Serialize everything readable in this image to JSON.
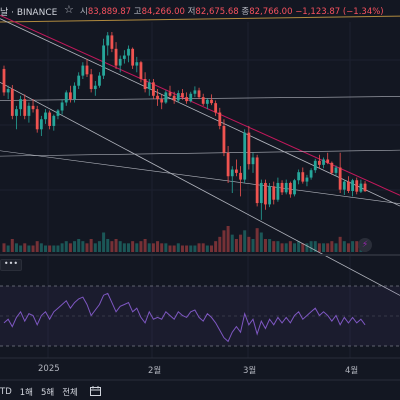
{
  "header": {
    "symbol_fragment": "날 · BINANCE",
    "open_label": "시",
    "open_value": "83,889.87",
    "high_label": "고",
    "high_value": "84,266.00",
    "low_label": "저",
    "low_value": "82,675.68",
    "close_label": "종",
    "close_value": "82,766.00",
    "change_value": "−1,123.87 (−1.34%)"
  },
  "indicator_toggle_label": "•••",
  "x_axis_labels": [
    "2025",
    "2월",
    "3월",
    "4월"
  ],
  "bottom_bar": {
    "items": [
      "TD",
      "1해",
      "5해",
      "전체"
    ]
  },
  "colors": {
    "background": "#131722",
    "up": "#26a69a",
    "down": "#ef5350",
    "rsi_line": "#7e57c2",
    "upper_trendline": "#c2185b",
    "resistance_line": "#b08a3e"
  },
  "icons": {
    "favorite": "star-outline-icon",
    "alert": "lightning-icon",
    "date_range": "calendar-range-icon"
  },
  "chart_data": {
    "type": "candlestick",
    "note_units": "USDT",
    "y_range": [
      74000,
      108000
    ],
    "candles": [
      [
        101000,
        101500,
        97000,
        97500
      ],
      [
        97500,
        98500,
        96500,
        98000
      ],
      [
        98000,
        98600,
        93500,
        94000
      ],
      [
        94000,
        95500,
        92000,
        95000
      ],
      [
        95000,
        97000,
        94000,
        96500
      ],
      [
        96500,
        97200,
        93500,
        94000
      ],
      [
        94000,
        96000,
        93000,
        95500
      ],
      [
        95500,
        96500,
        94500,
        95000
      ],
      [
        95000,
        95500,
        91500,
        92000
      ],
      [
        92000,
        94000,
        91000,
        93500
      ],
      [
        93500,
        95000,
        92800,
        94500
      ],
      [
        94500,
        94800,
        92000,
        92500
      ],
      [
        92500,
        94200,
        91800,
        94000
      ],
      [
        94000,
        95000,
        93500,
        94800
      ],
      [
        94800,
        96500,
        94200,
        96000
      ],
      [
        96000,
        97800,
        95500,
        97500
      ],
      [
        97500,
        98500,
        96000,
        96500
      ],
      [
        96500,
        99000,
        96000,
        98500
      ],
      [
        98500,
        100500,
        98000,
        100000
      ],
      [
        100000,
        102000,
        99500,
        101500
      ],
      [
        101500,
        102500,
        99800,
        100200
      ],
      [
        100200,
        101000,
        97500,
        98000
      ],
      [
        98000,
        99200,
        97000,
        98500
      ],
      [
        98500,
        100500,
        98200,
        100000
      ],
      [
        100000,
        105500,
        99500,
        104500
      ],
      [
        104500,
        106500,
        103000,
        106000
      ],
      [
        106000,
        106500,
        103500,
        104000
      ],
      [
        104000,
        105000,
        101000,
        101500
      ],
      [
        101500,
        103000,
        100500,
        102500
      ],
      [
        102500,
        103800,
        101800,
        103000
      ],
      [
        103000,
        104500,
        102000,
        104000
      ],
      [
        104000,
        104200,
        101000,
        101500
      ],
      [
        101500,
        102800,
        100500,
        102000
      ],
      [
        102000,
        102200,
        99000,
        99500
      ],
      [
        99500,
        100500,
        97500,
        98000
      ],
      [
        98000,
        99500,
        97000,
        99000
      ],
      [
        99000,
        99500,
        96500,
        97000
      ],
      [
        97000,
        98000,
        95500,
        96500
      ],
      [
        96500,
        97200,
        95000,
        96000
      ],
      [
        96000,
        97800,
        95800,
        97500
      ],
      [
        97500,
        98500,
        96800,
        97000
      ],
      [
        97000,
        97600,
        95800,
        96300
      ],
      [
        96300,
        97800,
        96000,
        97400
      ],
      [
        97400,
        98000,
        96400,
        96800
      ],
      [
        96800,
        97500,
        95800,
        96200
      ],
      [
        96200,
        97600,
        96000,
        97300
      ],
      [
        97300,
        98400,
        96800,
        97800
      ],
      [
        97800,
        98200,
        96500,
        96800
      ],
      [
        96800,
        97300,
        95500,
        95800
      ],
      [
        95800,
        96600,
        95000,
        96400
      ],
      [
        96400,
        97200,
        95600,
        95900
      ],
      [
        95900,
        96300,
        94000,
        94500
      ],
      [
        94500,
        95200,
        92000,
        92500
      ],
      [
        92500,
        93500,
        88000,
        88500
      ],
      [
        88500,
        89500,
        84000,
        85000
      ],
      [
        85000,
        86500,
        82500,
        86000
      ],
      [
        86000,
        87500,
        85000,
        85500
      ],
      [
        85500,
        86500,
        82000,
        84500
      ],
      [
        84500,
        92000,
        84000,
        91500
      ],
      [
        91500,
        92500,
        86000,
        86800
      ],
      [
        86800,
        88500,
        85500,
        87800
      ],
      [
        87800,
        88200,
        80500,
        81000
      ],
      [
        81000,
        84500,
        78500,
        84000
      ],
      [
        84000,
        84500,
        80000,
        80800
      ],
      [
        80800,
        84000,
        80400,
        83500
      ],
      [
        83500,
        84200,
        80800,
        81500
      ],
      [
        81500,
        84800,
        81200,
        84000
      ],
      [
        84000,
        84400,
        82200,
        82600
      ],
      [
        82600,
        84500,
        82300,
        84000
      ],
      [
        84000,
        84200,
        81800,
        82300
      ],
      [
        82300,
        84600,
        82000,
        84400
      ],
      [
        84400,
        86000,
        83800,
        85600
      ],
      [
        85600,
        86300,
        83900,
        84200
      ],
      [
        84200,
        85200,
        83500,
        84800
      ],
      [
        84800,
        86200,
        84500,
        85900
      ],
      [
        85900,
        87600,
        85500,
        87300
      ],
      [
        87300,
        88200,
        86200,
        86700
      ],
      [
        86700,
        87800,
        86200,
        87500
      ],
      [
        87500,
        88500,
        86800,
        87000
      ],
      [
        87000,
        87200,
        85200,
        85500
      ],
      [
        85500,
        86600,
        85000,
        86300
      ],
      [
        86300,
        88500,
        82500,
        83000
      ],
      [
        83000,
        84500,
        82200,
        84200
      ],
      [
        84200,
        85000,
        82500,
        82800
      ],
      [
        82800,
        84600,
        82000,
        84400
      ],
      [
        84400,
        84800,
        82300,
        82700
      ],
      [
        82700,
        84500,
        82500,
        83900
      ],
      [
        83900,
        84266,
        82675.68,
        82766
      ]
    ],
    "volume": [
      4,
      3,
      6,
      4,
      3,
      4,
      3,
      3,
      5,
      4,
      3,
      3,
      3,
      3,
      4,
      5,
      4,
      5,
      6,
      5,
      4,
      6,
      4,
      5,
      9,
      6,
      5,
      6,
      5,
      4,
      4,
      5,
      4,
      5,
      6,
      4,
      4,
      5,
      4,
      4,
      3,
      3,
      4,
      3,
      3,
      3,
      3,
      4,
      4,
      3,
      3,
      5,
      7,
      10,
      12,
      8,
      6,
      8,
      10,
      7,
      6,
      11,
      9,
      6,
      6,
      5,
      5,
      4,
      4,
      5,
      4,
      5,
      4,
      4,
      5,
      5,
      4,
      4,
      4,
      5,
      4,
      7,
      5,
      4,
      5,
      5,
      4,
      6
    ],
    "rsi": [
      40,
      44,
      36,
      46,
      52,
      42,
      50,
      48,
      38,
      48,
      52,
      44,
      52,
      56,
      60,
      64,
      56,
      62,
      66,
      68,
      60,
      48,
      54,
      60,
      70,
      72,
      62,
      52,
      58,
      60,
      62,
      52,
      56,
      46,
      40,
      52,
      44,
      46,
      44,
      52,
      48,
      44,
      52,
      48,
      46,
      52,
      54,
      46,
      42,
      50,
      46,
      40,
      32,
      24,
      20,
      30,
      36,
      30,
      50,
      38,
      44,
      28,
      42,
      34,
      44,
      38,
      46,
      40,
      46,
      40,
      48,
      52,
      44,
      48,
      52,
      56,
      48,
      52,
      48,
      42,
      48,
      38,
      46,
      40,
      46,
      40,
      44,
      38
    ],
    "drawn_lines": {
      "upper_trendline": [
        [
          0,
          109000
        ],
        [
          87,
          84500
        ]
      ],
      "channel_top": [
        [
          0,
          108500
        ],
        [
          87,
          83000
        ]
      ],
      "channel_bottom": [
        [
          0,
          99000
        ],
        [
          87,
          70000
        ]
      ],
      "resistance_diag": [
        [
          0,
          108000
        ],
        [
          87,
          108800
        ]
      ],
      "horizontal_1": 96300,
      "horizontal_2": 88000,
      "lower_diag": [
        [
          0,
          88800
        ],
        [
          87,
          81600
        ]
      ]
    }
  }
}
